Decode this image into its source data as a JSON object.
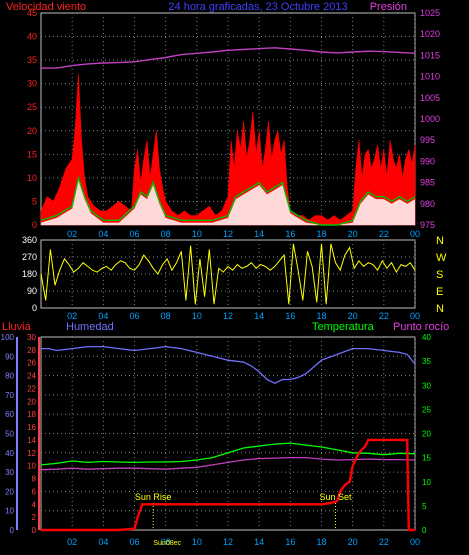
{
  "header": {
    "title": "24 hora graficadas, 23 Octubre 2013",
    "left_label": "Velocidad viento",
    "right_label": "Presión"
  },
  "colors": {
    "grid": "#808080",
    "gust": "#ff0000",
    "avg": "#00c000",
    "calm": "#ffffff",
    "pressure": "#c040c0",
    "direction": "#ffff00",
    "rain": "#ff0000",
    "humidity": "#7070ff",
    "temperature": "#00ff00",
    "dewpoint": "#c040c0"
  },
  "chart_data": [
    {
      "type": "line",
      "name": "wind_pressure",
      "x_ticks": [
        "02",
        "04",
        "06",
        "08",
        "10",
        "12",
        "14",
        "16",
        "18",
        "20",
        "22",
        "00"
      ],
      "left_axis": {
        "label": "Velocidad viento",
        "range": [
          0,
          45
        ],
        "ticks": [
          "0",
          "5",
          "10",
          "15",
          "20",
          "25",
          "30",
          "35",
          "40",
          "45"
        ]
      },
      "right_axis": {
        "label": "Presión",
        "range": [
          975,
          1025
        ],
        "ticks": [
          "975",
          "980",
          "985",
          "990",
          "995",
          "1000",
          "1005",
          "1010",
          "1015",
          "1020",
          "1025"
        ]
      },
      "series": [
        {
          "name": "",
          "axis": "left",
          "color": "#ff0000",
          "x": [
            0,
            0.4,
            0.8,
            1.2,
            1.6,
            2,
            2.2,
            2.4,
            2.6,
            2.8,
            3,
            3.4,
            3.8,
            4.2,
            4.6,
            5,
            5.4,
            5.8,
            6,
            6.2,
            6.4,
            6.6,
            6.8,
            7,
            7.2,
            7.4,
            7.6,
            7.8,
            8,
            8.4,
            8.8,
            9.2,
            9.6,
            10,
            10.4,
            10.8,
            11.2,
            11.6,
            12,
            12.2,
            12.4,
            12.6,
            12.8,
            13,
            13.2,
            13.4,
            13.6,
            13.8,
            14,
            14.2,
            14.4,
            14.6,
            14.8,
            15,
            15.2,
            15.4,
            15.6,
            15.8,
            16,
            16.4,
            16.8,
            17.2,
            17.6,
            18,
            18.4,
            18.8,
            19.2,
            19.6,
            20,
            20.2,
            20.4,
            20.6,
            20.8,
            21,
            21.2,
            21.4,
            21.6,
            21.8,
            22,
            22.2,
            22.4,
            22.6,
            22.8,
            23,
            23.2,
            23.4,
            23.6,
            23.8,
            24
          ],
          "values": [
            3,
            6,
            5,
            8,
            12,
            14,
            21,
            32,
            18,
            10,
            6,
            4,
            3,
            3,
            4,
            5,
            4,
            3,
            12,
            16,
            9,
            14,
            18,
            10,
            15,
            20,
            12,
            8,
            5,
            3,
            2,
            3,
            2,
            2,
            3,
            4,
            2,
            3,
            6,
            18,
            12,
            20,
            16,
            22,
            14,
            18,
            24,
            15,
            20,
            12,
            16,
            22,
            14,
            18,
            20,
            15,
            18,
            8,
            3,
            2,
            2,
            1,
            2,
            2,
            1,
            2,
            1,
            2,
            3,
            12,
            18,
            10,
            15,
            16,
            12,
            14,
            17,
            12,
            16,
            10,
            18,
            14,
            12,
            15,
            10,
            14,
            16,
            13,
            17
          ]
        },
        {
          "name": "",
          "axis": "left",
          "color": "#00c000",
          "x": [
            0,
            1,
            2,
            2.2,
            2.4,
            2.8,
            3.2,
            4,
            5,
            6,
            6.4,
            6.8,
            7.2,
            7.6,
            8,
            9,
            10,
            11,
            12,
            12.5,
            13,
            13.5,
            14,
            14.5,
            15,
            15.5,
            16,
            17,
            18,
            19,
            20,
            20.5,
            21,
            21.5,
            22,
            22.5,
            23,
            23.5,
            24
          ],
          "values": [
            1,
            2,
            4,
            7,
            10,
            6,
            3,
            1,
            1,
            4,
            7,
            6,
            9,
            5,
            2,
            1,
            1,
            1,
            2,
            6,
            7,
            8,
            9,
            7,
            8,
            9,
            3,
            1,
            0,
            0,
            1,
            5,
            7,
            6,
            6,
            5,
            6,
            5,
            6
          ]
        },
        {
          "name": "",
          "axis": "right",
          "color": "#c040c0",
          "x": [
            0,
            1,
            2,
            3,
            4,
            5,
            6,
            7,
            8,
            9,
            10,
            11,
            12,
            13,
            14,
            15,
            16,
            17,
            18,
            19,
            20,
            21,
            22,
            23,
            24
          ],
          "values": [
            1012,
            1012,
            1012.6,
            1013,
            1013.2,
            1013.3,
            1013.5,
            1014,
            1014.5,
            1015.2,
            1015.5,
            1015.8,
            1016.2,
            1016.4,
            1016.6,
            1016.8,
            1016.5,
            1016.2,
            1015.8,
            1015.6,
            1015.8,
            1016,
            1015.9,
            1015.7,
            1015.5
          ]
        }
      ]
    },
    {
      "type": "line",
      "name": "wind_direction",
      "x_ticks": [
        "02",
        "04",
        "06",
        "08",
        "10",
        "12",
        "14",
        "16",
        "18",
        "20",
        "22",
        "00"
      ],
      "left_axis": {
        "range": [
          0,
          360
        ],
        "ticks": [
          "0",
          "90",
          "180",
          "270",
          "360"
        ]
      },
      "right_labels": [
        "N",
        "W",
        "S",
        "E",
        "N"
      ],
      "series": [
        {
          "name": "",
          "color": "#ffff00",
          "x": [
            0,
            0.3,
            0.6,
            0.9,
            1.2,
            1.5,
            1.8,
            2.1,
            2.4,
            2.7,
            3,
            3.3,
            3.6,
            3.9,
            4.2,
            4.5,
            4.8,
            5.1,
            5.4,
            5.7,
            6,
            6.3,
            6.6,
            6.9,
            7.2,
            7.5,
            7.8,
            8.1,
            8.4,
            8.7,
            9,
            9.3,
            9.6,
            9.9,
            10.2,
            10.5,
            10.8,
            11.1,
            11.4,
            11.7,
            12,
            12.3,
            12.6,
            12.9,
            13.2,
            13.5,
            13.8,
            14.1,
            14.4,
            14.7,
            15,
            15.3,
            15.6,
            15.9,
            16.2,
            16.5,
            16.8,
            17.1,
            17.4,
            17.7,
            18,
            18.3,
            18.6,
            18.9,
            19.2,
            19.5,
            19.8,
            20.1,
            20.4,
            20.7,
            21,
            21.3,
            21.6,
            21.9,
            22.2,
            22.5,
            22.8,
            23.1,
            23.4,
            23.7,
            24
          ],
          "values": [
            180,
            40,
            310,
            120,
            200,
            260,
            230,
            190,
            210,
            240,
            220,
            200,
            190,
            210,
            220,
            200,
            230,
            250,
            240,
            210,
            200,
            230,
            280,
            250,
            210,
            180,
            230,
            260,
            200,
            240,
            300,
            40,
            330,
            20,
            260,
            60,
            310,
            20,
            210,
            190,
            220,
            200,
            230,
            210,
            220,
            240,
            210,
            230,
            220,
            200,
            220,
            250,
            280,
            20,
            340,
            200,
            40,
            300,
            220,
            30,
            340,
            20,
            340,
            240,
            200,
            280,
            320,
            210,
            250,
            220,
            240,
            230,
            200,
            250,
            210,
            240,
            190,
            230,
            220,
            240,
            200
          ]
        }
      ]
    },
    {
      "type": "line",
      "name": "rain_humidity_temp",
      "x_ticks": [
        "02",
        "04",
        "06",
        "08",
        "10",
        "12",
        "14",
        "16",
        "18",
        "20",
        "22",
        "00"
      ],
      "left_axes": [
        {
          "label": "Lluvia",
          "range": [
            0,
            30
          ],
          "ticks": [
            "0",
            "2",
            "4",
            "6",
            "8",
            "10",
            "12",
            "14",
            "16",
            "18",
            "20",
            "22",
            "24",
            "26",
            "28",
            "30"
          ]
        },
        {
          "label": "Humedad",
          "range": [
            0,
            100
          ],
          "ticks": [
            "0",
            "10",
            "20",
            "30",
            "40",
            "50",
            "60",
            "70",
            "80",
            "90",
            "100"
          ]
        }
      ],
      "right_axis": {
        "label": "Temperatura",
        "range": [
          0,
          40
        ],
        "ticks": [
          "0",
          "5",
          "10",
          "15",
          "20",
          "25",
          "30",
          "35",
          "40"
        ]
      },
      "right_label_2": "Punto rocío",
      "annotations": [
        {
          "text": "Sun Rise",
          "x": 7.2
        },
        {
          "text": "Sun Set",
          "x": 18.9
        },
        {
          "text": "Sun08ec",
          "x": 8.1
        }
      ],
      "series": [
        {
          "name": "",
          "axis": "rain",
          "color": "#ff0000",
          "x": [
            0,
            1,
            2,
            3,
            4,
            5,
            6,
            6.2,
            6.5,
            7,
            8,
            9,
            10,
            11,
            12,
            13,
            14,
            15,
            16,
            17,
            18,
            18.6,
            19,
            19.2,
            19.5,
            19.8,
            20,
            20.4,
            20.8,
            21,
            21.3,
            22,
            23,
            23.4,
            23.5,
            23.6,
            24
          ],
          "values": [
            0,
            0,
            0,
            0,
            0,
            0,
            0.2,
            2,
            4,
            4,
            4,
            4,
            4,
            4,
            4,
            4,
            4,
            4,
            4,
            4,
            4,
            4.2,
            4.5,
            6,
            7,
            7.5,
            10,
            12,
            13,
            14,
            14,
            14,
            14,
            14,
            14,
            0,
            0
          ]
        },
        {
          "name": "",
          "axis": "humidity",
          "color": "#7070ff",
          "x": [
            0,
            0.5,
            1,
            2,
            3,
            4,
            5,
            6,
            7,
            8,
            9,
            10,
            11,
            12,
            13,
            13.5,
            14,
            14.5,
            15,
            15.5,
            16,
            16.5,
            17,
            18,
            19,
            20,
            21,
            22,
            23,
            23.5,
            24
          ],
          "values": [
            94,
            94,
            93,
            94,
            95,
            95,
            94,
            93,
            94,
            95,
            94,
            92,
            90,
            88,
            87,
            85,
            82,
            78,
            76,
            78,
            78,
            79,
            81,
            88,
            91,
            94,
            94,
            93,
            92,
            91,
            86
          ]
        },
        {
          "name": "",
          "axis": "temp",
          "color": "#00ff00",
          "x": [
            0,
            1,
            2,
            3,
            4,
            5,
            6,
            7,
            8,
            9,
            10,
            11,
            12,
            13,
            14,
            15,
            16,
            17,
            18,
            19,
            20,
            21,
            22,
            23,
            24
          ],
          "values": [
            13.5,
            13.8,
            14.3,
            14,
            14.2,
            14.1,
            14,
            14.1,
            14.1,
            14.2,
            14.5,
            15,
            16,
            17,
            17.4,
            17.8,
            18,
            17.6,
            17.2,
            16.6,
            16,
            15.9,
            15.6,
            15.9,
            15.8
          ]
        },
        {
          "name": "",
          "axis": "temp",
          "color": "#c040c0",
          "x": [
            0,
            1,
            2,
            3,
            4,
            5,
            6,
            7,
            8,
            9,
            10,
            11,
            12,
            13,
            14,
            15,
            16,
            17,
            18,
            19,
            20,
            21,
            22,
            23,
            24
          ],
          "values": [
            12.5,
            12.6,
            12.8,
            12.6,
            12.7,
            12.8,
            12.8,
            12.7,
            12.6,
            12.8,
            13,
            13.5,
            14,
            14.5,
            14.8,
            14.9,
            15,
            15,
            14.7,
            14.5,
            14.6,
            14.7,
            14.6,
            14.6,
            14.5
          ]
        }
      ]
    }
  ]
}
